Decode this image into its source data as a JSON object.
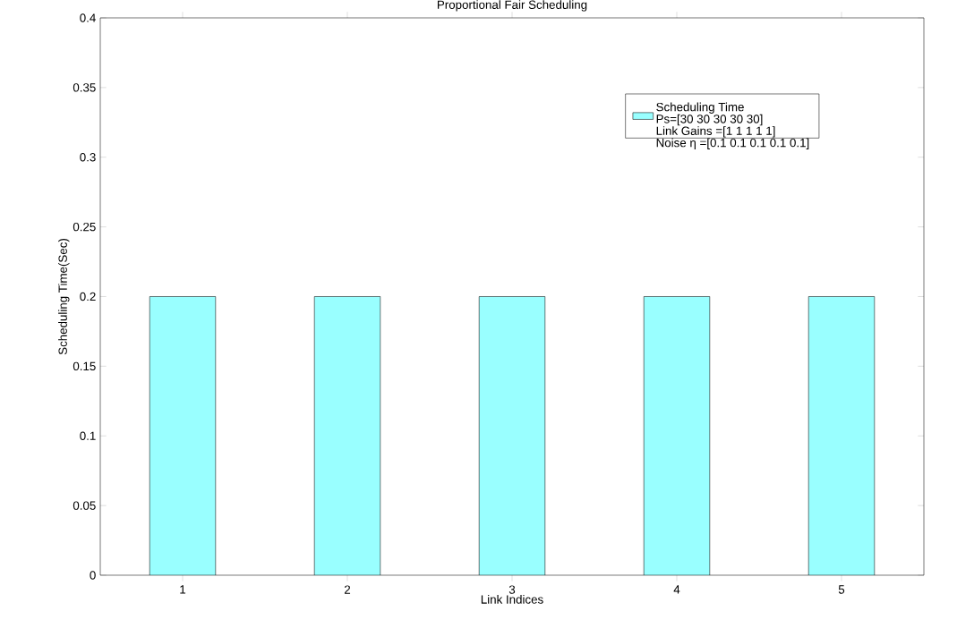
{
  "chart_data": {
    "type": "bar",
    "title": "Proportional Fair Scheduling",
    "xlabel": "Link Indices",
    "ylabel": "Scheduling Time(Sec)",
    "categories": [
      "1",
      "2",
      "3",
      "4",
      "5"
    ],
    "series": [
      {
        "name": "Scheduling Time",
        "color": "#99ffff",
        "values": [
          0.2,
          0.2,
          0.2,
          0.2,
          0.2
        ]
      }
    ],
    "annotations": [
      "Ps=[30 30 30  30 30]",
      "Link Gains =[1 1 1 1 1]",
      "Noise η =[0.1 0.1 0.1 0.1 0.1]"
    ],
    "ylim": [
      0,
      0.4
    ],
    "yticks": [
      0,
      0.05,
      0.1,
      0.15,
      0.2,
      0.25,
      0.3,
      0.35,
      0.4
    ],
    "grid": false,
    "legend": "top right"
  }
}
